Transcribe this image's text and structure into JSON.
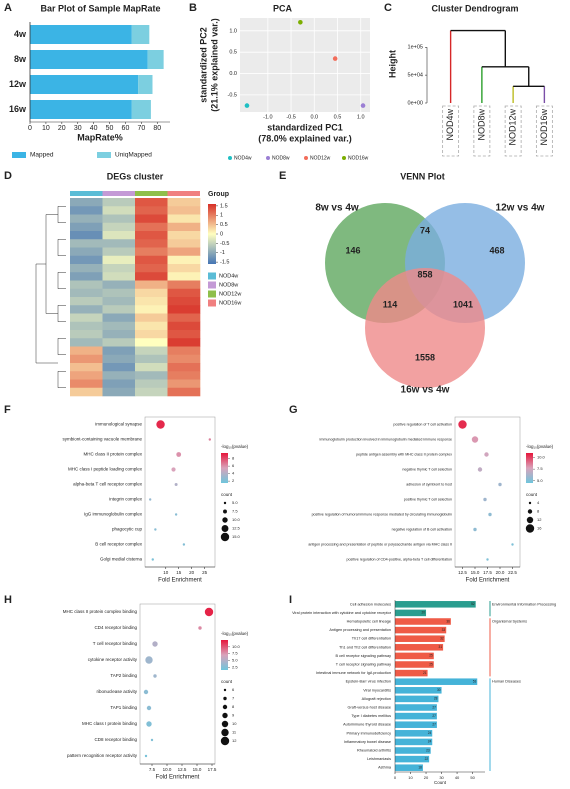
{
  "chart_data": [
    {
      "type": "bar",
      "label": "A",
      "title": "Bar Plot of Sample MapRate",
      "stacked": true,
      "categories": [
        "4w",
        "8w",
        "12w",
        "16w"
      ],
      "series": [
        {
          "name": "Mapped",
          "color": "#3bb4e5",
          "values": [
            64,
            74,
            68,
            64
          ]
        },
        {
          "name": "UniqMapped",
          "color": "#7ccfe0",
          "values": [
            11,
            10,
            9,
            12
          ]
        }
      ],
      "xlim": [
        0,
        88
      ],
      "xticks": [
        0,
        10,
        20,
        30,
        40,
        50,
        60,
        70,
        80
      ],
      "xlabel": "MapRate%"
    },
    {
      "type": "scatter",
      "label": "B",
      "title": "PCA",
      "xlabel": [
        "standardized PC1",
        "(78.0% explained var.)"
      ],
      "ylabel": [
        "standardized PC2",
        "(21.1% explained var.)"
      ],
      "series": [
        {
          "name": "NOD4w",
          "color": "#1fbfc3",
          "x": [
            -1.45
          ],
          "values": [
            -0.75
          ]
        },
        {
          "name": "NOD8w",
          "color": "#9b7fd4",
          "x": [
            1.05
          ],
          "values": [
            -0.75
          ]
        },
        {
          "name": "NOD12w",
          "color": "#f26d5b",
          "x": [
            0.45
          ],
          "values": [
            0.35
          ]
        },
        {
          "name": "NOD16w",
          "color": "#7cae00",
          "x": [
            -0.3
          ],
          "values": [
            1.2
          ]
        }
      ],
      "xlim": [
        -1.6,
        1.2
      ],
      "ylim": [
        -0.9,
        1.3
      ],
      "xticks": [
        {
          "value": -1,
          "label": "-1.0"
        },
        {
          "value": -0.5,
          "label": "-0.5"
        },
        {
          "value": 0,
          "label": "0.0"
        },
        {
          "value": 0.5,
          "label": "0.5"
        },
        {
          "value": 1,
          "label": "1.0"
        }
      ],
      "yticks": [
        {
          "value": -0.5,
          "label": "-0.5"
        },
        {
          "value": 0,
          "label": "0.0"
        },
        {
          "value": 0.5,
          "label": "0.5"
        },
        {
          "value": 1,
          "label": "1.0"
        }
      ],
      "grid": true
    },
    {
      "type": "dendrogram",
      "label": "C",
      "title": "Cluster Dendrogram",
      "ylabel": "Height",
      "leaves": [
        {
          "name": "NOD4w",
          "color": "#d62728"
        },
        {
          "name": "NOD8w",
          "color": "#2ca02c"
        },
        {
          "name": "NOD12w",
          "color": "#bcbd22"
        },
        {
          "name": "NOD16w",
          "color": "#7b4fa8"
        }
      ],
      "heights": [
        30000,
        65000,
        130000
      ],
      "ylim": [
        0,
        140000
      ],
      "yticks": [
        {
          "value": 0,
          "label": "0e+00"
        },
        {
          "value": 50000,
          "label": "5e+04"
        },
        {
          "value": 100000,
          "label": "1e+05"
        }
      ]
    },
    {
      "type": "heatmap",
      "label": "D",
      "title": "DEGs cluster",
      "legend_title": "Group",
      "groups": [
        {
          "name": "NOD4w",
          "color": "#5bbcd6"
        },
        {
          "name": "NOD8w",
          "color": "#c49ad6"
        },
        {
          "name": "NOD12w",
          "color": "#8fbf4a"
        },
        {
          "name": "NOD16w",
          "color": "#f08080"
        }
      ],
      "colors": [
        "#4575b4",
        "#ffffbf",
        "#d73027"
      ],
      "zlim": [
        -1.6,
        1.6
      ],
      "zticks": [
        1.5,
        1,
        0.5,
        0,
        -0.5,
        -1,
        -1.5
      ],
      "values": [
        [
          -1.0,
          -0.6,
          1.3,
          0.4
        ],
        [
          -1.2,
          -0.4,
          1.2,
          0.5
        ],
        [
          -0.9,
          -0.7,
          1.4,
          0.2
        ],
        [
          -1.1,
          -0.5,
          1.1,
          0.6
        ],
        [
          -1.3,
          -0.3,
          1.3,
          0.3
        ],
        [
          -0.8,
          -0.8,
          1.2,
          0.4
        ],
        [
          -1.0,
          -0.6,
          1.0,
          0.7
        ],
        [
          -1.2,
          -0.2,
          1.3,
          0.1
        ],
        [
          -0.9,
          -0.5,
          1.2,
          0.3
        ],
        [
          -1.1,
          -0.4,
          1.4,
          0.1
        ],
        [
          -0.7,
          -0.9,
          0.6,
          1.0
        ],
        [
          -0.8,
          -0.7,
          0.3,
          1.3
        ],
        [
          -0.6,
          -0.8,
          0.2,
          1.4
        ],
        [
          -0.9,
          -0.6,
          0.1,
          1.5
        ],
        [
          -0.5,
          -1.0,
          0.4,
          1.2
        ],
        [
          -0.7,
          -0.8,
          0.2,
          1.4
        ],
        [
          -0.6,
          -0.9,
          0.3,
          1.3
        ],
        [
          -0.8,
          -0.6,
          0.0,
          1.5
        ],
        [
          0.6,
          -1.1,
          -0.5,
          1.0
        ],
        [
          0.8,
          -1.0,
          -0.7,
          0.9
        ],
        [
          0.5,
          -1.2,
          -0.4,
          1.1
        ],
        [
          0.7,
          -0.9,
          -0.8,
          1.0
        ],
        [
          0.9,
          -1.1,
          -0.6,
          0.8
        ],
        [
          0.4,
          -1.0,
          -0.5,
          1.1
        ]
      ]
    },
    {
      "type": "venn",
      "label": "E",
      "title": "VENN Plot",
      "sets": [
        {
          "name": "8w vs 4w",
          "color": "#5fa85f"
        },
        {
          "name": "12w vs 4w",
          "color": "#7aaee0"
        },
        {
          "name": "16w vs 4w",
          "color": "#ef8a8a"
        }
      ],
      "values": [
        146,
        468,
        1558,
        74,
        114,
        1041,
        858
      ]
    },
    {
      "type": "dot",
      "label": "F",
      "categories": [
        "immunological synapse",
        "symbiont-containing vacuole membrane",
        "MHC class II protein complex",
        "MHC class I peptide loading complex",
        "alpha-beta T cell receptor complex",
        "integrin complex",
        "IgG immunoglobulin complex",
        "phagocytic cup",
        "B cell receptor complex",
        "Golgi medial cisterna"
      ],
      "values": [
        8,
        27,
        15,
        13,
        14,
        4,
        14,
        6,
        17,
        5
      ],
      "color_values": [
        9,
        6.5,
        6,
        5.5,
        4,
        3,
        2.5,
        2.5,
        2.3,
        2
      ],
      "sizes": [
        15,
        5,
        9,
        8,
        6,
        5,
        5,
        5,
        5,
        5
      ],
      "xlim": [
        2,
        29
      ],
      "xticks": [
        10,
        15,
        20,
        25
      ],
      "xlabel": "Fold Enrichment",
      "colors": [
        "#6ec5dc",
        "#d9a3bb",
        "#e6163b"
      ],
      "color_title": "-log₁₀(pvalue)",
      "clim": [
        1.5,
        9.5
      ],
      "cticks": [
        8,
        6,
        4,
        2
      ],
      "size_title": "count",
      "size_ticks": [
        {
          "value": 5,
          "label": "5.0"
        },
        {
          "value": 7.5,
          "label": "7.5"
        },
        {
          "value": 10,
          "label": "10.0"
        },
        {
          "value": 12.5,
          "label": "12.5"
        },
        {
          "value": 15,
          "label": "15.0"
        }
      ]
    },
    {
      "type": "dot",
      "label": "G",
      "categories": [
        "positive regulation of T cell activation",
        "immunoglobulin production involved in immunoglobulin mediated immune response",
        "peptide antigen assembly with MHC class II protein complex",
        "negative thymic T cell selection",
        "adhesion of symbiont to host",
        "positive thymic T cell selection",
        "positive regulation of humoral immune response mediated by circulating immunoglobulin",
        "negative regulation of B cell activation",
        "antigen processing and presentation of peptide or polysaccharide antigen via MHC class II",
        "positive regulation of CD4-positive, alpha-beta T cell differentiation"
      ],
      "values": [
        12.5,
        15,
        17.3,
        16,
        20,
        17,
        18,
        15,
        22.5,
        17.5
      ],
      "color_values": [
        10.5,
        8,
        7.5,
        7,
        6,
        6,
        5.5,
        5.5,
        5,
        5
      ],
      "sizes": [
        16,
        12,
        8,
        8,
        6,
        6,
        6,
        6,
        4,
        4
      ],
      "xlim": [
        11,
        24
      ],
      "xticks": [
        {
          "value": 12.5,
          "label": "12.5"
        },
        {
          "value": 15,
          "label": "15.0"
        },
        {
          "value": 17.5,
          "label": "17.5"
        },
        {
          "value": 20,
          "label": "20.0"
        },
        {
          "value": 22.5,
          "label": "22.5"
        }
      ],
      "xlabel": "Fold Enrichment",
      "colors": [
        "#6ec5dc",
        "#d9a3bb",
        "#e6163b"
      ],
      "color_title": "-log₁₀(pvalue)",
      "clim": [
        4.5,
        11
      ],
      "cticks": [
        {
          "value": 10,
          "label": "10.0"
        },
        {
          "value": 7.5,
          "label": "7.5"
        },
        {
          "value": 5,
          "label": "5.0"
        }
      ],
      "size_title": "count",
      "size_ticks": [
        4,
        8,
        12,
        16
      ]
    },
    {
      "type": "dot",
      "label": "H",
      "categories": [
        "MHC class II protein complex binding",
        "CD4 receptor binding",
        "T cell receptor binding",
        "cytokine receptor activity",
        "TAP2 binding",
        "ribonuclease activity",
        "TAP1 binding",
        "MHC class I protein binding",
        "CD8 receptor binding",
        "pattern recognition receptor activity"
      ],
      "values": [
        17,
        15.5,
        8,
        7,
        8,
        6.5,
        7,
        7,
        7.5,
        6.5
      ],
      "color_values": [
        12,
        8,
        5,
        4,
        4,
        3,
        3,
        2.5,
        2.5,
        2
      ],
      "sizes": [
        12,
        7,
        9,
        11,
        7,
        8,
        8,
        9,
        6,
        6
      ],
      "xlim": [
        5.5,
        18
      ],
      "xticks": [
        {
          "value": 7.5,
          "label": "7.5"
        },
        {
          "value": 10,
          "label": "10.0"
        },
        {
          "value": 12.5,
          "label": "12.5"
        },
        {
          "value": 15,
          "label": "15.0"
        },
        {
          "value": 17.5,
          "label": "17.5"
        }
      ],
      "xlabel": "Fold Enrichment",
      "colors": [
        "#6ec5dc",
        "#d9a3bb",
        "#e6163b"
      ],
      "color_title": "-log₁₀(pvalue)",
      "clim": [
        1.5,
        12.5
      ],
      "cticks": [
        {
          "value": 10,
          "label": "10.0"
        },
        {
          "value": 7.5,
          "label": "7.5"
        },
        {
          "value": 5,
          "label": "5.0"
        },
        {
          "value": 2.5,
          "label": "2.5"
        }
      ],
      "size_title": "count",
      "size_ticks": [
        6,
        7,
        8,
        9,
        10,
        11,
        12
      ]
    },
    {
      "type": "bar",
      "label": "I",
      "categories": [
        "Cell adhesion molecules",
        "Viral protein interaction with cytokine and cytokine receptor",
        "Hematopoietic cell lineage",
        "Antigen processing and presentation",
        "Th17 cell differentiation",
        "Th1 and Th2 cell differentiation",
        "B cell receptor signaling pathway",
        "T cell receptor signaling pathway",
        "Intestinal immune network for IgA production",
        "Epstein-Barr virus infection",
        "Viral myocarditis",
        "Allograft rejection",
        "Graft-versus-host disease",
        "Type I diabetes mellitus",
        "Autoimmune thyroid disease",
        "Primary immunodeficiency",
        "Inflammatory bowel disease",
        "Rheumatoid arthritis",
        "Leishmaniasis",
        "Asthma"
      ],
      "series": [
        {
          "name": "Environmental Information Processing",
          "color": "#2a9d8f",
          "values": [
            52,
            20,
            null,
            null,
            null,
            null,
            null,
            null,
            null,
            null,
            null,
            null,
            null,
            null,
            null,
            null,
            null,
            null,
            null,
            null
          ]
        },
        {
          "name": "Organismal Systems",
          "color": "#ef5b47",
          "values": [
            null,
            null,
            36,
            33,
            32,
            31,
            25,
            25,
            21,
            null,
            null,
            null,
            null,
            null,
            null,
            null,
            null,
            null,
            null,
            null
          ]
        },
        {
          "name": "Human Diseases",
          "color": "#45b3d8",
          "values": [
            null,
            null,
            null,
            null,
            null,
            null,
            null,
            null,
            null,
            53,
            30,
            28,
            27,
            27,
            27,
            24,
            24,
            23,
            22,
            18
          ]
        }
      ],
      "xlim": [
        0,
        58
      ],
      "xticks": [
        0,
        10,
        20,
        30,
        40,
        50
      ],
      "xlabel": "Count"
    }
  ]
}
